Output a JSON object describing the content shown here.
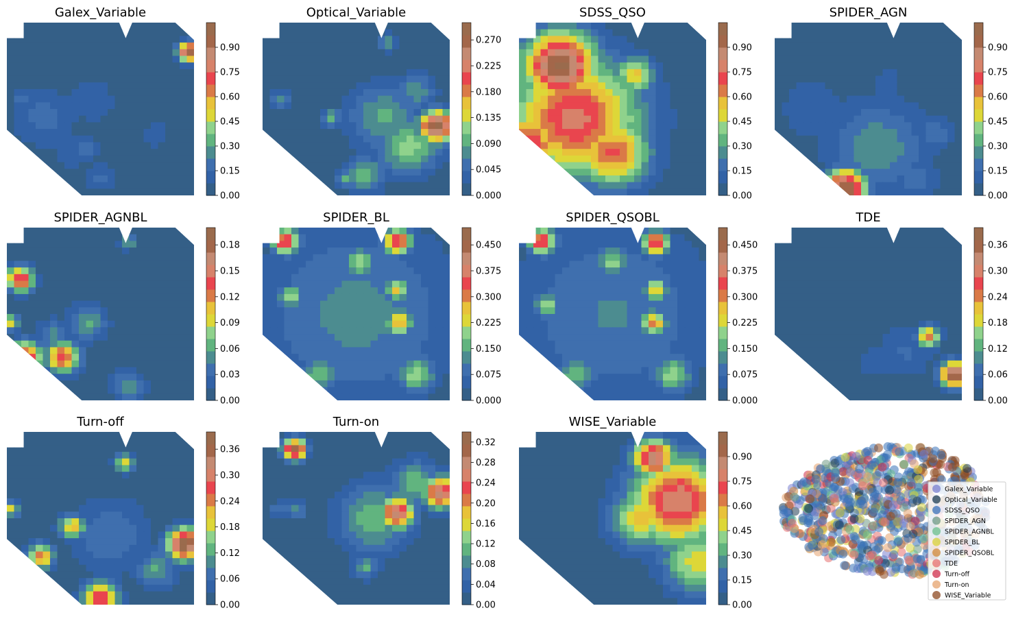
{
  "palette": [
    "#345f87",
    "#3262a6",
    "#3f6fae",
    "#4c8c90",
    "#61b47f",
    "#8fd28c",
    "#ddd738",
    "#e8c23a",
    "#da7a47",
    "#e9454e",
    "#d7826a",
    "#c48a72",
    "#a3674a",
    "#9a6b4d"
  ],
  "chart_data": [
    {
      "type": "heatmap",
      "title": "Galex_Variable",
      "ticks": [
        "0.00",
        "0.15",
        "0.30",
        "0.45",
        "0.60",
        "0.75",
        "0.90"
      ],
      "cbar_max": 1.05,
      "hotspots": [
        {
          "x": 0.97,
          "y": 0.17,
          "v": 1.0,
          "r": 0.06
        },
        {
          "x": 0.2,
          "y": 0.55,
          "v": 0.18,
          "r": 0.2
        },
        {
          "x": 0.45,
          "y": 0.45,
          "v": 0.12,
          "r": 0.18
        },
        {
          "x": 0.5,
          "y": 0.9,
          "v": 0.16,
          "r": 0.1
        },
        {
          "x": 0.08,
          "y": 0.45,
          "v": 0.2,
          "r": 0.06
        },
        {
          "x": 0.43,
          "y": 0.73,
          "v": 0.2,
          "r": 0.08
        },
        {
          "x": 0.8,
          "y": 0.65,
          "v": 0.16,
          "r": 0.08
        },
        {
          "x": 0.35,
          "y": 0.75,
          "v": 0.14,
          "r": 0.12
        }
      ]
    },
    {
      "type": "heatmap",
      "title": "Optical_Variable",
      "ticks": [
        "0.000",
        "0.045",
        "0.090",
        "0.135",
        "0.180",
        "0.225",
        "0.270"
      ],
      "cbar_max": 0.3,
      "hotspots": [
        {
          "x": 0.93,
          "y": 0.6,
          "v": 0.3,
          "r": 0.1
        },
        {
          "x": 0.78,
          "y": 0.72,
          "v": 0.12,
          "r": 0.18
        },
        {
          "x": 0.65,
          "y": 0.55,
          "v": 0.09,
          "r": 0.22
        },
        {
          "x": 0.55,
          "y": 0.88,
          "v": 0.1,
          "r": 0.12
        },
        {
          "x": 0.82,
          "y": 0.4,
          "v": 0.08,
          "r": 0.12
        },
        {
          "x": 0.1,
          "y": 0.45,
          "v": 0.08,
          "r": 0.06
        },
        {
          "x": 0.37,
          "y": 0.55,
          "v": 0.09,
          "r": 0.06
        },
        {
          "x": 0.67,
          "y": 0.12,
          "v": 0.08,
          "r": 0.06
        },
        {
          "x": 0.45,
          "y": 0.9,
          "v": 0.09,
          "r": 0.06
        }
      ]
    },
    {
      "type": "heatmap",
      "title": "SDSS_QSO",
      "ticks": [
        "0.00",
        "0.15",
        "0.30",
        "0.45",
        "0.60",
        "0.75",
        "0.90"
      ],
      "cbar_max": 1.05,
      "hotspots": [
        {
          "x": 0.22,
          "y": 0.25,
          "v": 1.0,
          "r": 0.22
        },
        {
          "x": 0.3,
          "y": 0.55,
          "v": 0.78,
          "r": 0.38
        },
        {
          "x": 0.05,
          "y": 0.7,
          "v": 0.75,
          "r": 0.2
        },
        {
          "x": 0.5,
          "y": 0.75,
          "v": 0.7,
          "r": 0.22
        },
        {
          "x": 0.62,
          "y": 0.3,
          "v": 0.55,
          "r": 0.12
        }
      ]
    },
    {
      "type": "heatmap",
      "title": "SPIDER_AGN",
      "ticks": [
        "0.00",
        "0.15",
        "0.30",
        "0.45",
        "0.60",
        "0.75",
        "0.90"
      ],
      "cbar_max": 1.05,
      "hotspots": [
        {
          "x": 0.38,
          "y": 0.96,
          "v": 1.0,
          "r": 0.12
        },
        {
          "x": 0.55,
          "y": 0.72,
          "v": 0.28,
          "r": 0.3
        },
        {
          "x": 0.2,
          "y": 0.5,
          "v": 0.15,
          "r": 0.2
        },
        {
          "x": 0.75,
          "y": 0.9,
          "v": 0.18,
          "r": 0.15
        },
        {
          "x": 0.85,
          "y": 0.65,
          "v": 0.2,
          "r": 0.12
        },
        {
          "x": 0.6,
          "y": 0.35,
          "v": 0.1,
          "r": 0.15
        }
      ]
    },
    {
      "type": "heatmap",
      "title": "SPIDER_AGNBL",
      "ticks": [
        "0.00",
        "0.03",
        "0.06",
        "0.09",
        "0.12",
        "0.15",
        "0.18"
      ],
      "cbar_max": 0.2,
      "hotspots": [
        {
          "x": 0.07,
          "y": 0.3,
          "v": 0.15,
          "r": 0.08
        },
        {
          "x": 0.1,
          "y": 0.75,
          "v": 0.15,
          "r": 0.1
        },
        {
          "x": 0.3,
          "y": 0.75,
          "v": 0.14,
          "r": 0.1
        },
        {
          "x": 0.43,
          "y": 0.55,
          "v": 0.06,
          "r": 0.12
        },
        {
          "x": 0.25,
          "y": 0.62,
          "v": 0.05,
          "r": 0.1
        },
        {
          "x": 0.65,
          "y": 0.92,
          "v": 0.06,
          "r": 0.1
        },
        {
          "x": 0.65,
          "y": 0.08,
          "v": 0.07,
          "r": 0.05
        },
        {
          "x": 0.02,
          "y": 0.55,
          "v": 0.1,
          "r": 0.05
        }
      ]
    },
    {
      "type": "heatmap",
      "title": "SPIDER_BL",
      "ticks": [
        "0.000",
        "0.075",
        "0.150",
        "0.225",
        "0.300",
        "0.375",
        "0.450"
      ],
      "cbar_max": 0.5,
      "hotspots": [
        {
          "x": 0.5,
          "y": 0.5,
          "v": 0.12,
          "r": 0.6
        },
        {
          "x": 0.73,
          "y": 0.55,
          "v": 0.3,
          "r": 0.08
        },
        {
          "x": 0.72,
          "y": 0.36,
          "v": 0.26,
          "r": 0.07
        },
        {
          "x": 0.72,
          "y": 0.08,
          "v": 0.38,
          "r": 0.08
        },
        {
          "x": 0.12,
          "y": 0.08,
          "v": 0.38,
          "r": 0.08
        },
        {
          "x": 0.52,
          "y": 0.2,
          "v": 0.2,
          "r": 0.1
        },
        {
          "x": 0.82,
          "y": 0.85,
          "v": 0.2,
          "r": 0.12
        },
        {
          "x": 0.3,
          "y": 0.85,
          "v": 0.18,
          "r": 0.12
        },
        {
          "x": 0.15,
          "y": 0.4,
          "v": 0.2,
          "r": 0.08
        }
      ]
    },
    {
      "type": "heatmap",
      "title": "SPIDER_QSOBL",
      "ticks": [
        "0.000",
        "0.075",
        "0.150",
        "0.225",
        "0.300",
        "0.375",
        "0.450"
      ],
      "cbar_max": 0.5,
      "hotspots": [
        {
          "x": 0.5,
          "y": 0.5,
          "v": 0.11,
          "r": 0.6
        },
        {
          "x": 0.72,
          "y": 0.55,
          "v": 0.3,
          "r": 0.08
        },
        {
          "x": 0.73,
          "y": 0.36,
          "v": 0.26,
          "r": 0.07
        },
        {
          "x": 0.73,
          "y": 0.09,
          "v": 0.38,
          "r": 0.08
        },
        {
          "x": 0.12,
          "y": 0.08,
          "v": 0.38,
          "r": 0.08
        },
        {
          "x": 0.5,
          "y": 0.2,
          "v": 0.2,
          "r": 0.1
        },
        {
          "x": 0.82,
          "y": 0.85,
          "v": 0.2,
          "r": 0.12
        },
        {
          "x": 0.3,
          "y": 0.85,
          "v": 0.18,
          "r": 0.12
        },
        {
          "x": 0.15,
          "y": 0.45,
          "v": 0.2,
          "r": 0.08
        }
      ]
    },
    {
      "type": "heatmap",
      "title": "TDE",
      "ticks": [
        "0.00",
        "0.06",
        "0.12",
        "0.18",
        "0.24",
        "0.30",
        "0.36"
      ],
      "cbar_max": 0.4,
      "hotspots": [
        {
          "x": 0.96,
          "y": 0.85,
          "v": 0.4,
          "r": 0.08
        },
        {
          "x": 0.82,
          "y": 0.63,
          "v": 0.25,
          "r": 0.07
        },
        {
          "x": 0.7,
          "y": 0.72,
          "v": 0.06,
          "r": 0.18
        },
        {
          "x": 0.53,
          "y": 0.78,
          "v": 0.05,
          "r": 0.12
        }
      ]
    },
    {
      "type": "heatmap",
      "title": "Turn-off",
      "ticks": [
        "0.00",
        "0.06",
        "0.12",
        "0.18",
        "0.24",
        "0.30",
        "0.36"
      ],
      "cbar_max": 0.4,
      "hotspots": [
        {
          "x": 0.95,
          "y": 0.65,
          "v": 0.4,
          "r": 0.1
        },
        {
          "x": 0.5,
          "y": 0.96,
          "v": 0.3,
          "r": 0.1
        },
        {
          "x": 0.18,
          "y": 0.72,
          "v": 0.25,
          "r": 0.08
        },
        {
          "x": 0.35,
          "y": 0.55,
          "v": 0.22,
          "r": 0.08
        },
        {
          "x": 0.63,
          "y": 0.18,
          "v": 0.2,
          "r": 0.06
        },
        {
          "x": 0.8,
          "y": 0.8,
          "v": 0.12,
          "r": 0.12
        },
        {
          "x": 0.55,
          "y": 0.6,
          "v": 0.08,
          "r": 0.25
        },
        {
          "x": 0.02,
          "y": 0.45,
          "v": 0.18,
          "r": 0.05
        }
      ]
    },
    {
      "type": "heatmap",
      "title": "Turn-on",
      "ticks": [
        "0.00",
        "0.04",
        "0.08",
        "0.12",
        "0.16",
        "0.20",
        "0.24",
        "0.28",
        "0.32"
      ],
      "cbar_max": 0.34,
      "hotspots": [
        {
          "x": 0.17,
          "y": 0.1,
          "v": 0.3,
          "r": 0.07
        },
        {
          "x": 0.72,
          "y": 0.47,
          "v": 0.28,
          "r": 0.1
        },
        {
          "x": 0.95,
          "y": 0.35,
          "v": 0.28,
          "r": 0.1
        },
        {
          "x": 0.6,
          "y": 0.5,
          "v": 0.12,
          "r": 0.22
        },
        {
          "x": 0.82,
          "y": 0.3,
          "v": 0.12,
          "r": 0.15
        },
        {
          "x": 0.55,
          "y": 0.78,
          "v": 0.1,
          "r": 0.08
        },
        {
          "x": 0.18,
          "y": 0.45,
          "v": 0.1,
          "r": 0.06
        },
        {
          "x": 0.08,
          "y": 0.45,
          "v": 0.08,
          "r": 0.05
        }
      ]
    },
    {
      "type": "heatmap",
      "title": "WISE_Variable",
      "ticks": [
        "0.00",
        "0.15",
        "0.30",
        "0.45",
        "0.60",
        "0.75",
        "0.90"
      ],
      "cbar_max": 1.05,
      "hotspots": [
        {
          "x": 0.85,
          "y": 0.4,
          "v": 0.82,
          "r": 0.28
        },
        {
          "x": 0.72,
          "y": 0.15,
          "v": 0.9,
          "r": 0.12
        },
        {
          "x": 0.95,
          "y": 0.75,
          "v": 0.5,
          "r": 0.2
        },
        {
          "x": 0.65,
          "y": 0.5,
          "v": 0.55,
          "r": 0.18
        }
      ]
    },
    {
      "type": "scatter",
      "title": "",
      "legend": [
        "Galex_Variable",
        "Optical_Variable",
        "SDSS_QSO",
        "SPIDER_AGN",
        "SPIDER_AGNBL",
        "SPIDER_BL",
        "SPIDER_QSOBL",
        "TDE",
        "Turn-off",
        "Turn-on",
        "WISE_Variable"
      ],
      "legend_colors": [
        "#7a7fcf",
        "#1f3d52",
        "#3b72b8",
        "#6f9a85",
        "#6cc08e",
        "#d8d23a",
        "#d28a3a",
        "#e5706f",
        "#cf2f4c",
        "#e6a36e",
        "#8e4a21"
      ],
      "legend_position": "lower-right"
    }
  ]
}
